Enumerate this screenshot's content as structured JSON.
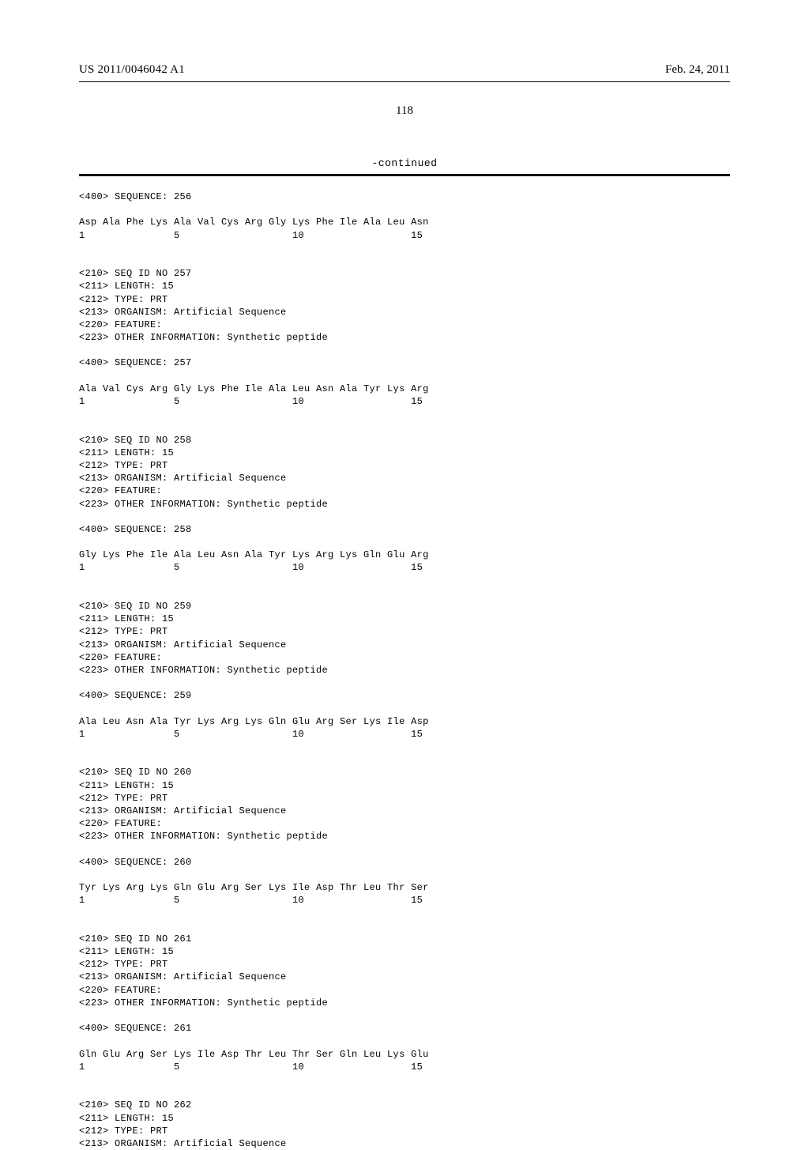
{
  "header": {
    "publication_number": "US 2011/0046042 A1",
    "publication_date": "Feb. 24, 2011"
  },
  "page_number": "118",
  "continued_label": "-continued",
  "sequences": [
    {
      "header_lines": [
        "<400> SEQUENCE: 256"
      ],
      "residue_line": "Asp Ala Phe Lys Ala Val Cys Arg Gly Lys Phe Ile Ala Leu Asn",
      "number_line": "1               5                   10                  15"
    },
    {
      "header_lines": [
        "<210> SEQ ID NO 257",
        "<211> LENGTH: 15",
        "<212> TYPE: PRT",
        "<213> ORGANISM: Artificial Sequence",
        "<220> FEATURE:",
        "<223> OTHER INFORMATION: Synthetic peptide",
        "",
        "<400> SEQUENCE: 257"
      ],
      "residue_line": "Ala Val Cys Arg Gly Lys Phe Ile Ala Leu Asn Ala Tyr Lys Arg",
      "number_line": "1               5                   10                  15"
    },
    {
      "header_lines": [
        "<210> SEQ ID NO 258",
        "<211> LENGTH: 15",
        "<212> TYPE: PRT",
        "<213> ORGANISM: Artificial Sequence",
        "<220> FEATURE:",
        "<223> OTHER INFORMATION: Synthetic peptide",
        "",
        "<400> SEQUENCE: 258"
      ],
      "residue_line": "Gly Lys Phe Ile Ala Leu Asn Ala Tyr Lys Arg Lys Gln Glu Arg",
      "number_line": "1               5                   10                  15"
    },
    {
      "header_lines": [
        "<210> SEQ ID NO 259",
        "<211> LENGTH: 15",
        "<212> TYPE: PRT",
        "<213> ORGANISM: Artificial Sequence",
        "<220> FEATURE:",
        "<223> OTHER INFORMATION: Synthetic peptide",
        "",
        "<400> SEQUENCE: 259"
      ],
      "residue_line": "Ala Leu Asn Ala Tyr Lys Arg Lys Gln Glu Arg Ser Lys Ile Asp",
      "number_line": "1               5                   10                  15"
    },
    {
      "header_lines": [
        "<210> SEQ ID NO 260",
        "<211> LENGTH: 15",
        "<212> TYPE: PRT",
        "<213> ORGANISM: Artificial Sequence",
        "<220> FEATURE:",
        "<223> OTHER INFORMATION: Synthetic peptide",
        "",
        "<400> SEQUENCE: 260"
      ],
      "residue_line": "Tyr Lys Arg Lys Gln Glu Arg Ser Lys Ile Asp Thr Leu Thr Ser",
      "number_line": "1               5                   10                  15"
    },
    {
      "header_lines": [
        "<210> SEQ ID NO 261",
        "<211> LENGTH: 15",
        "<212> TYPE: PRT",
        "<213> ORGANISM: Artificial Sequence",
        "<220> FEATURE:",
        "<223> OTHER INFORMATION: Synthetic peptide",
        "",
        "<400> SEQUENCE: 261"
      ],
      "residue_line": "Gln Glu Arg Ser Lys Ile Asp Thr Leu Thr Ser Gln Leu Lys Glu",
      "number_line": "1               5                   10                  15"
    },
    {
      "header_lines": [
        "<210> SEQ ID NO 262",
        "<211> LENGTH: 15",
        "<212> TYPE: PRT",
        "<213> ORGANISM: Artificial Sequence"
      ],
      "residue_line": "",
      "number_line": ""
    }
  ]
}
